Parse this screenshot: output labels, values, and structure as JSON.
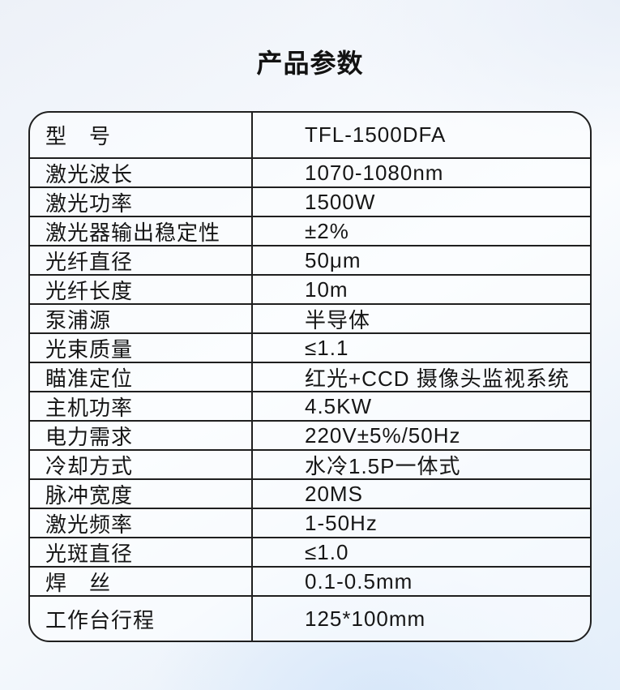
{
  "page": {
    "title": "产品参数"
  },
  "colors": {
    "background_light": "#fafcfe",
    "background_blue": "#d7e7f9",
    "table_border": "#1f1f1f",
    "text": "#161616",
    "table_background": "#fcfdff"
  },
  "table": {
    "rows": [
      {
        "label": "型　号",
        "value": "TFL-1500DFA"
      },
      {
        "label": "激光波长",
        "value": "1070-1080nm"
      },
      {
        "label": "激光功率",
        "value": "1500W"
      },
      {
        "label": "激光器输出稳定性",
        "value": "±2%"
      },
      {
        "label": "光纤直径",
        "value": "50μm"
      },
      {
        "label": "光纤长度",
        "value": "10m"
      },
      {
        "label": "泵浦源",
        "value": "半导体"
      },
      {
        "label": "光束质量",
        "value": "≤1.1"
      },
      {
        "label": "瞄准定位",
        "value": "红光+CCD 摄像头监视系统"
      },
      {
        "label": "主机功率",
        "value": "4.5KW"
      },
      {
        "label": "电力需求",
        "value": "220V±5%/50Hz"
      },
      {
        "label": "冷却方式",
        "value": "水冷1.5P一体式"
      },
      {
        "label": "脉冲宽度",
        "value": "20MS"
      },
      {
        "label": "激光频率",
        "value": "1-50Hz"
      },
      {
        "label": "光斑直径",
        "value": "≤1.0"
      },
      {
        "label": "焊　丝",
        "value": "0.1-0.5mm"
      },
      {
        "label": "工作台行程",
        "value": "125*100mm"
      }
    ]
  }
}
